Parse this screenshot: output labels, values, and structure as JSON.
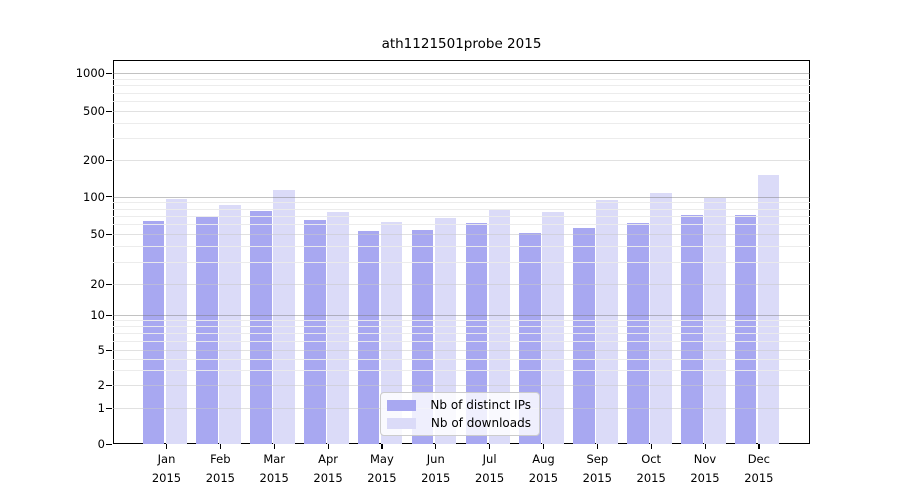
{
  "chart_data": {
    "type": "bar",
    "title": "ath1121501probe 2015",
    "x_year": "2015",
    "categories": [
      "Jan",
      "Feb",
      "Mar",
      "Apr",
      "May",
      "Jun",
      "Jul",
      "Aug",
      "Sep",
      "Oct",
      "Nov",
      "Dec"
    ],
    "series": [
      {
        "name": "Nb of distinct IPs",
        "color": "#a8a8f1",
        "values": [
          64,
          68,
          77,
          65,
          53,
          54,
          61,
          51,
          56,
          61,
          71,
          71
        ]
      },
      {
        "name": "Nb of downloads",
        "color": "#dbdbf8",
        "values": [
          95,
          85,
          113,
          75,
          62,
          67,
          78,
          75,
          93,
          107,
          97,
          150
        ]
      }
    ],
    "y_ticks": [
      0,
      1,
      2,
      5,
      10,
      20,
      50,
      100,
      200,
      500,
      1000
    ],
    "y_scale": "symlog",
    "ylim": [
      0,
      1000
    ],
    "grid": "both",
    "legend_position": "lower center"
  }
}
